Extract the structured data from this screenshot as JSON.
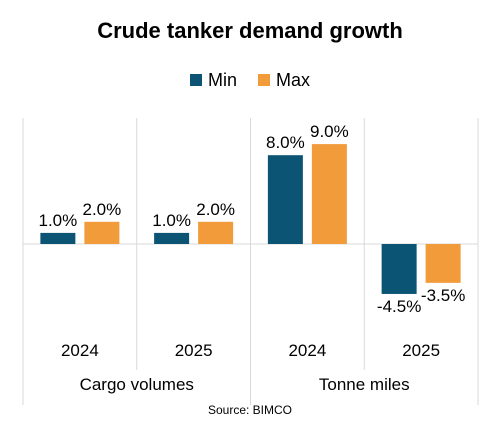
{
  "chart_data": {
    "type": "bar",
    "title": "Crude tanker demand growth",
    "series": [
      {
        "name": "Min",
        "color": "#0b5473",
        "values": [
          1.0,
          1.0,
          8.0,
          -4.5
        ]
      },
      {
        "name": "Max",
        "color": "#f29b3b",
        "values": [
          2.0,
          2.0,
          9.0,
          -3.5
        ]
      }
    ],
    "categories": [
      "2024",
      "2025",
      "2024",
      "2025"
    ],
    "groups": [
      {
        "label": "Cargo volumes",
        "categories": [
          "2024",
          "2025"
        ]
      },
      {
        "label": "Tonne miles",
        "categories": [
          "2024",
          "2025"
        ]
      }
    ],
    "value_format": "%",
    "ylim": [
      -6,
      12
    ],
    "grid": false,
    "legend_position": "top"
  },
  "source": "Source: BIMCO"
}
